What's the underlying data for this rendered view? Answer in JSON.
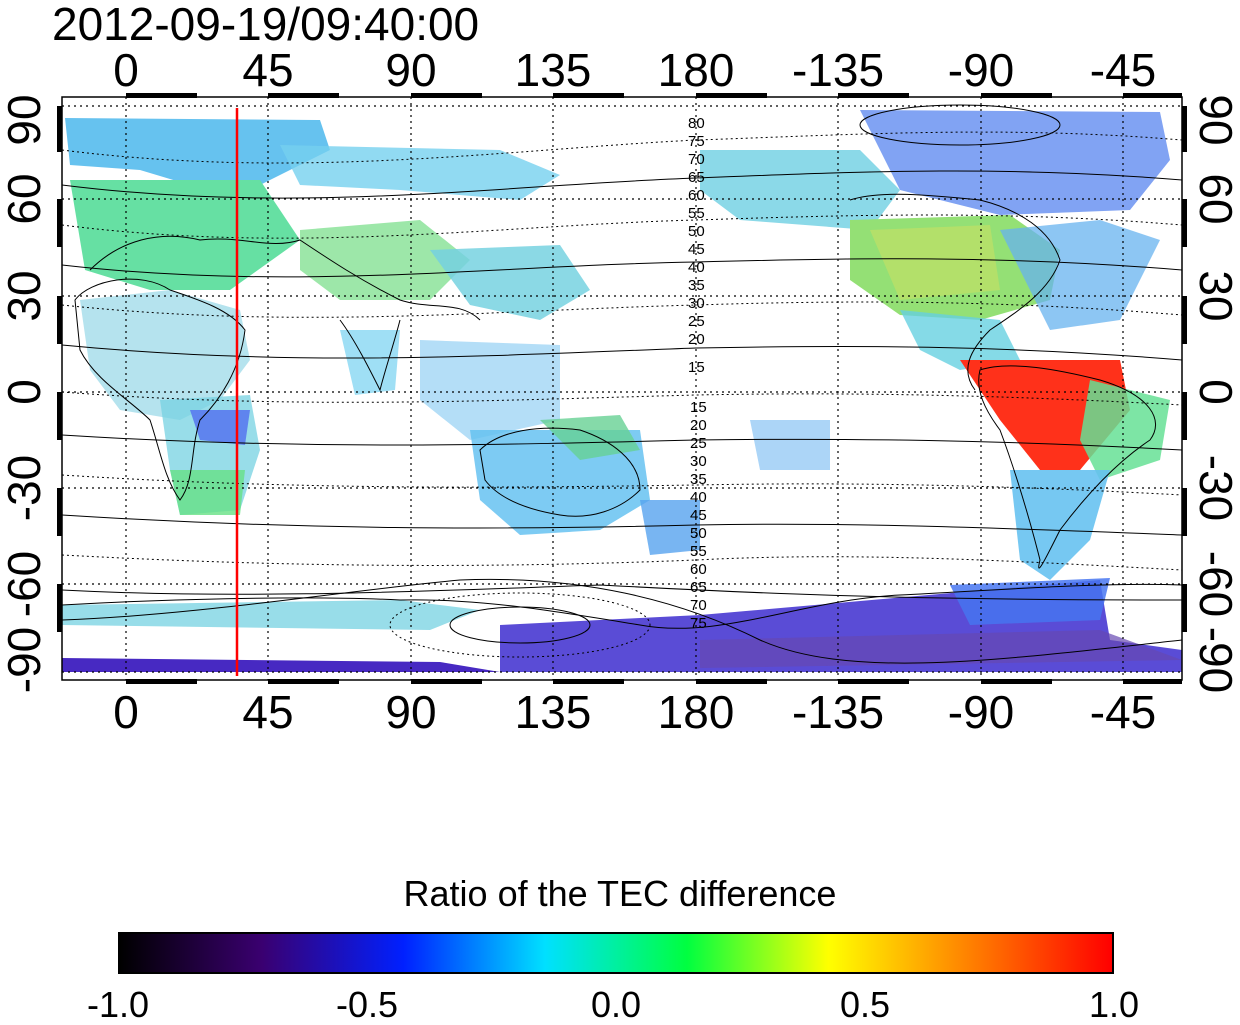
{
  "timestamp": "2012-09-19/09:40:00",
  "map": {
    "top_lon_labels": [
      "0",
      "45",
      "90",
      "135",
      "180",
      "-135",
      "-90",
      "-45"
    ],
    "bottom_lon_labels": [
      "0",
      "45",
      "90",
      "135",
      "180",
      "-135",
      "-90",
      "-45"
    ],
    "left_lat_labels": [
      "90",
      "60",
      "30",
      "0",
      "-30",
      "-60",
      "-90"
    ],
    "right_lat_labels": [
      "90",
      "60",
      "30",
      "0",
      "-30",
      "-60",
      "-90"
    ],
    "north_mlat_labels": [
      "80",
      "75",
      "70",
      "65",
      "60",
      "55",
      "50",
      "45",
      "40",
      "35",
      "30",
      "25",
      "20",
      "15"
    ],
    "south_mlat_labels": [
      "15",
      "20",
      "25",
      "30",
      "35",
      "40",
      "45",
      "50",
      "55",
      "60",
      "65",
      "70",
      "75"
    ],
    "meridian_line_lon": 35,
    "meridian_line_color": "#ff0000",
    "colors": {
      "strong_positive": "#ff0000",
      "weak_negative": "#33ccff",
      "neutral": "#55e070",
      "strong_negative": "#3a00a0"
    }
  },
  "colorbar": {
    "title": "Ratio of the TEC difference",
    "min": -1.0,
    "max": 1.0,
    "tick_labels": [
      "-1.0",
      "-0.5",
      "0.0",
      "0.5",
      "1.0"
    ],
    "colormap": [
      "#000000",
      "#3a0070",
      "#0020ff",
      "#00e0ff",
      "#00ff40",
      "#ffff00",
      "#ff8000",
      "#ff0000"
    ]
  }
}
